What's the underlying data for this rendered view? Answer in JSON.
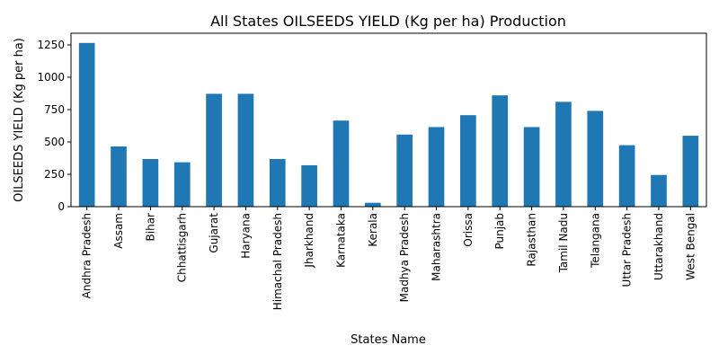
{
  "chart_data": {
    "type": "bar",
    "title": "All States OILSEEDS YIELD (Kg per ha) Production",
    "xlabel": "States Name",
    "ylabel": "OILSEEDS YIELD (Kg per ha)",
    "categories": [
      "Andhra Pradesh",
      "Assam",
      "Bihar",
      "Chhattisgarh",
      "Gujarat",
      "Haryana",
      "Himachal Pradesh",
      "Jharkhand",
      "Karnataka",
      "Kerala",
      "Madhya Pradesh",
      "Maharashtra",
      "Orissa",
      "Punjab",
      "Rajasthan",
      "Tamil Nadu",
      "Telangana",
      "Uttar Pradesh",
      "Uttarakhand",
      "West Bengal"
    ],
    "values": [
      1265,
      465,
      368,
      343,
      872,
      872,
      368,
      320,
      665,
      30,
      557,
      615,
      707,
      860,
      615,
      810,
      740,
      475,
      245,
      548
    ],
    "ylim": [
      0,
      1340
    ],
    "yticks": [
      0,
      250,
      500,
      750,
      1000,
      1250
    ],
    "grid": false,
    "legend": "none",
    "bar_color": "#1f77b4"
  }
}
